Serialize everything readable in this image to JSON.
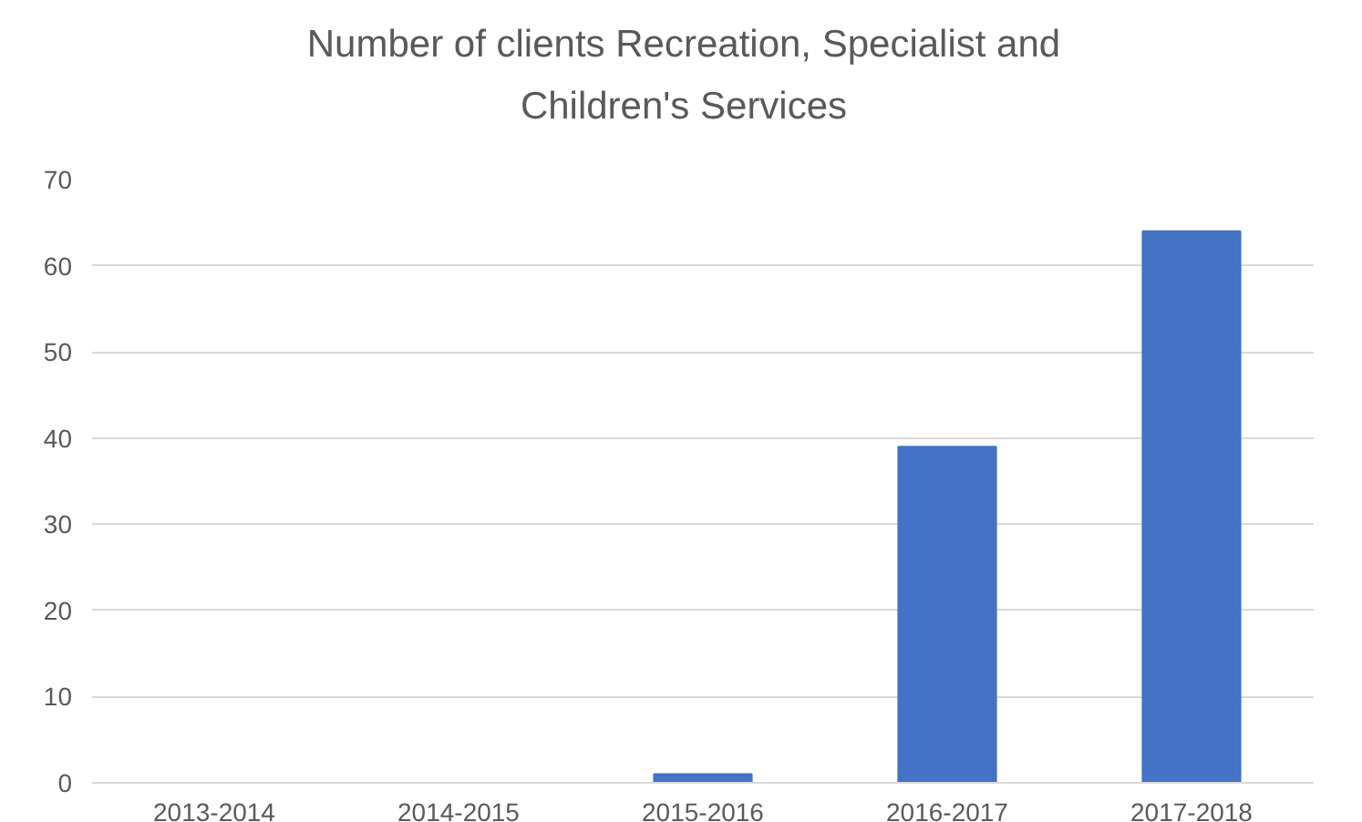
{
  "chart_data": {
    "type": "bar",
    "title": "Number of clients Recreation, Specialist and\nChildren's Services",
    "categories": [
      "2013-2014",
      "2014-2015",
      "2015-2016",
      "2016-2017",
      "2017-2018"
    ],
    "values": [
      0,
      0,
      1,
      39,
      64
    ],
    "color": "#4472c4",
    "ylim": [
      0,
      70
    ],
    "yticks": [
      0,
      10,
      20,
      30,
      40,
      50,
      60,
      70
    ],
    "grid": "y"
  }
}
